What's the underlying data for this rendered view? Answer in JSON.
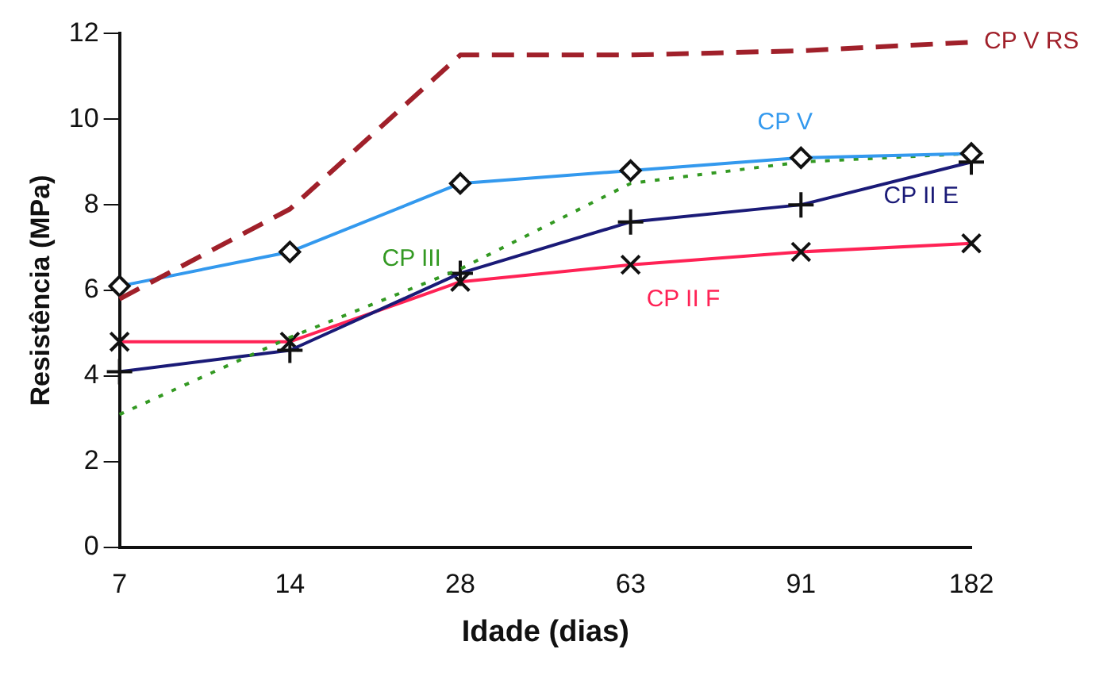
{
  "chart_data": {
    "type": "line",
    "xlabel": "Idade (dias)",
    "ylabel": "Resistência (MPa)",
    "categories": [
      "7",
      "14",
      "28",
      "63",
      "91",
      "182"
    ],
    "series": [
      {
        "name": "CP V RS",
        "color": "#a0202a",
        "line_style": "dashed",
        "marker": "none",
        "values": [
          5.8,
          7.9,
          11.5,
          11.5,
          11.6,
          11.8
        ]
      },
      {
        "name": "CP V",
        "color": "#3399ee",
        "line_style": "solid",
        "marker": "diamond",
        "values": [
          6.1,
          6.9,
          8.5,
          8.8,
          9.1,
          9.2
        ]
      },
      {
        "name": "CP III",
        "color": "#339922",
        "line_style": "dotted",
        "marker": "none",
        "values": [
          3.1,
          4.9,
          6.5,
          8.5,
          9.0,
          9.2
        ]
      },
      {
        "name": "CP II E",
        "color": "#1a1a77",
        "line_style": "solid",
        "marker": "cross",
        "values": [
          4.1,
          4.6,
          6.4,
          7.6,
          8.0,
          9.0
        ]
      },
      {
        "name": "CP II F",
        "color": "#ff2255",
        "line_style": "solid",
        "marker": "cross",
        "values": [
          4.8,
          4.8,
          6.2,
          6.6,
          6.9,
          7.1
        ]
      }
    ],
    "ylim": [
      0,
      12
    ],
    "yticks": [
      0,
      2,
      4,
      6,
      8,
      10,
      12
    ],
    "grid": false,
    "legend": false
  }
}
